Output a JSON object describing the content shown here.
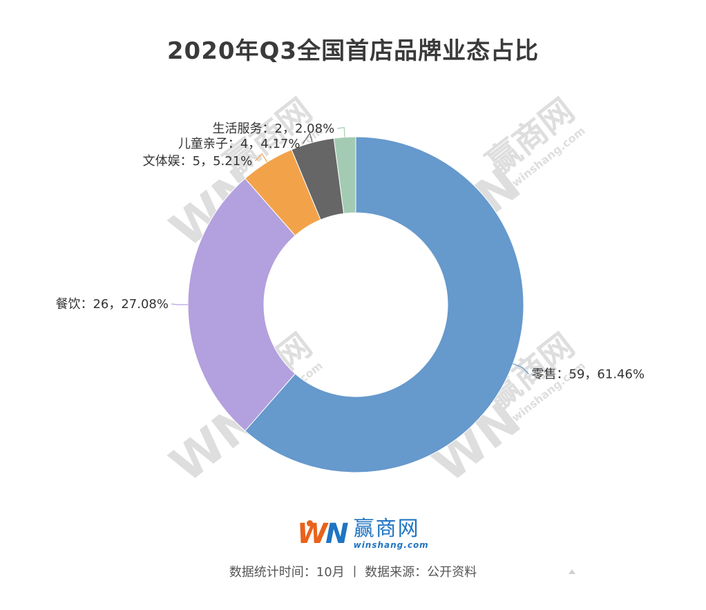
{
  "chart_data": {
    "type": "pie",
    "title": "2020年Q3全国首店品牌业态占比",
    "donut": true,
    "slices": [
      {
        "name": "零售",
        "value": 59,
        "percent": "61.46%",
        "label": "零售：59，61.46%",
        "color": "#6699cc"
      },
      {
        "name": "餐饮",
        "value": 26,
        "percent": "27.08%",
        "label": "餐饮：26，27.08%",
        "color": "#b3a0de"
      },
      {
        "name": "文体娱",
        "value": 5,
        "percent": "5.21%",
        "label": "文体娱：5，5.21%",
        "color": "#f2a34a"
      },
      {
        "name": "儿童亲子",
        "value": 4,
        "percent": "4.17%",
        "label": "儿童亲子：4，4.17%",
        "color": "#666666"
      },
      {
        "name": "生活服务",
        "value": 2,
        "percent": "2.08%",
        "label": "生活服务：2，2.08%",
        "color": "#a3cbb3"
      }
    ],
    "legend": "none"
  },
  "watermark": {
    "mark": "WN",
    "name": "赢商网",
    "url": "winshang.com"
  },
  "logo": {
    "mark_w": "W",
    "mark_n": "N",
    "name": "赢商网",
    "url": "winshang.com"
  },
  "footer": "数据统计时间：10月 丨 数据来源：公开资料"
}
